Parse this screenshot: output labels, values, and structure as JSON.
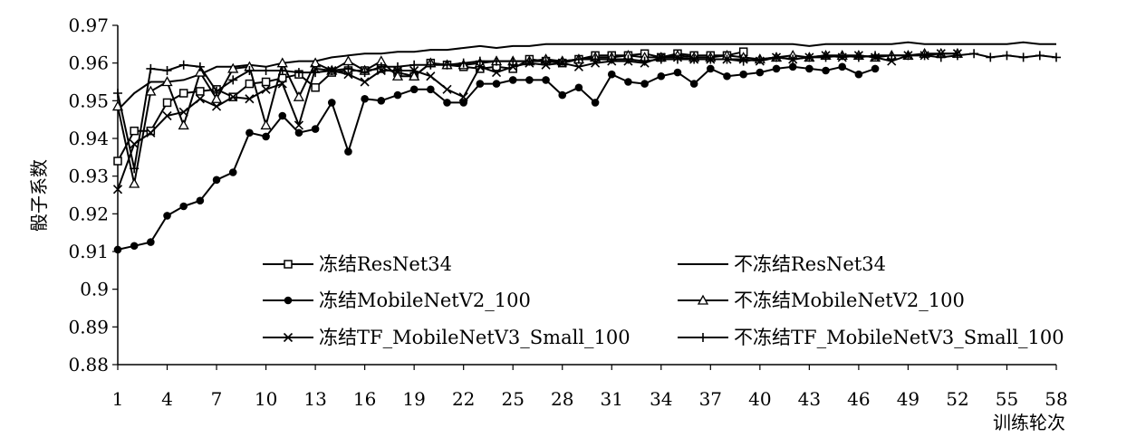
{
  "chart_data": {
    "type": "line",
    "title": "",
    "xlabel": "训练轮次",
    "ylabel": "骰子系数",
    "x_ticks": [
      1,
      4,
      7,
      10,
      13,
      16,
      19,
      22,
      25,
      28,
      31,
      34,
      37,
      40,
      43,
      46,
      49,
      52,
      55,
      58
    ],
    "xlim": [
      1,
      58
    ],
    "ylim": [
      0.88,
      0.97
    ],
    "y_ticks": [
      0.88,
      0.89,
      0.9,
      0.91,
      0.92,
      0.93,
      0.94,
      0.95,
      0.96,
      0.97
    ],
    "grid": false,
    "legend_position": "bottom, inside plot, two columns",
    "series": [
      {
        "name": "冻结ResNet34",
        "marker": "square",
        "x": [
          1,
          2,
          3,
          4,
          5,
          6,
          7,
          8,
          9,
          10,
          11,
          12,
          13,
          14,
          15,
          16,
          17,
          18,
          19,
          20,
          21,
          22,
          23,
          24,
          25,
          26,
          27,
          28,
          29,
          30,
          31,
          32,
          33,
          34,
          35,
          36,
          37,
          38,
          39
        ],
        "y": [
          0.934,
          0.942,
          0.942,
          0.9495,
          0.952,
          0.9525,
          0.953,
          0.951,
          0.9545,
          0.955,
          0.956,
          0.957,
          0.9535,
          0.9575,
          0.958,
          0.958,
          0.9585,
          0.9575,
          0.9565,
          0.96,
          0.9595,
          0.959,
          0.9585,
          0.959,
          0.9585,
          0.961,
          0.9605,
          0.96,
          0.961,
          0.962,
          0.962,
          0.962,
          0.9625,
          0.9615,
          0.9625,
          0.962,
          0.962,
          0.962,
          0.963
        ]
      },
      {
        "name": "不冻结ResNet34",
        "marker": "none",
        "x": [
          1,
          2,
          3,
          4,
          5,
          6,
          7,
          8,
          9,
          10,
          11,
          12,
          13,
          14,
          15,
          16,
          17,
          18,
          19,
          20,
          21,
          22,
          23,
          24,
          25,
          26,
          27,
          28,
          29,
          30,
          31,
          32,
          33,
          34,
          35,
          36,
          37,
          38,
          39,
          40,
          41,
          42,
          43,
          44,
          45,
          46,
          47,
          48,
          49,
          50,
          51,
          52,
          53,
          54,
          55,
          56,
          57,
          58
        ],
        "y": [
          0.9475,
          0.952,
          0.955,
          0.955,
          0.9555,
          0.957,
          0.959,
          0.959,
          0.9595,
          0.959,
          0.96,
          0.9605,
          0.9605,
          0.9615,
          0.962,
          0.9625,
          0.9625,
          0.963,
          0.963,
          0.9635,
          0.9635,
          0.964,
          0.9645,
          0.964,
          0.9645,
          0.9645,
          0.965,
          0.965,
          0.965,
          0.965,
          0.965,
          0.965,
          0.965,
          0.965,
          0.965,
          0.965,
          0.965,
          0.965,
          0.965,
          0.965,
          0.965,
          0.965,
          0.9645,
          0.965,
          0.965,
          0.965,
          0.965,
          0.965,
          0.9655,
          0.965,
          0.965,
          0.965,
          0.965,
          0.965,
          0.965,
          0.9655,
          0.965,
          0.965
        ]
      },
      {
        "name": "冻结MobileNetV2_100",
        "marker": "circle",
        "x": [
          1,
          2,
          3,
          4,
          5,
          6,
          7,
          8,
          9,
          10,
          11,
          12,
          13,
          14,
          15,
          16,
          17,
          18,
          19,
          20,
          21,
          22,
          23,
          24,
          25,
          26,
          27,
          28,
          29,
          30,
          31,
          32,
          33,
          34,
          35,
          36,
          37,
          38,
          39,
          40,
          41,
          42,
          43,
          44,
          45,
          46,
          47
        ],
        "y": [
          0.9105,
          0.9115,
          0.9125,
          0.9195,
          0.922,
          0.9235,
          0.929,
          0.931,
          0.9415,
          0.9405,
          0.946,
          0.9415,
          0.9425,
          0.9495,
          0.9365,
          0.9505,
          0.95,
          0.9515,
          0.953,
          0.953,
          0.9495,
          0.9495,
          0.9545,
          0.9545,
          0.9555,
          0.9555,
          0.9555,
          0.9515,
          0.9535,
          0.9495,
          0.957,
          0.955,
          0.9545,
          0.9565,
          0.9575,
          0.9545,
          0.9585,
          0.9565,
          0.957,
          0.9575,
          0.9585,
          0.959,
          0.9585,
          0.958,
          0.959,
          0.957,
          0.9585
        ]
      },
      {
        "name": "不冻结MobileNetV2_100",
        "marker": "triangle",
        "x": [
          1,
          2,
          3,
          4,
          5,
          6,
          7,
          8,
          9,
          10,
          11,
          12,
          13,
          14,
          15,
          16,
          17,
          18,
          19,
          20,
          21,
          22,
          23,
          24,
          25,
          26,
          27,
          28,
          29,
          30,
          31,
          32,
          33,
          34,
          35,
          36,
          37,
          38,
          39,
          40,
          41,
          42,
          43,
          44,
          45,
          46,
          47,
          48,
          49,
          50,
          51,
          52
        ],
        "y": [
          0.9485,
          0.928,
          0.9525,
          0.955,
          0.9435,
          0.9575,
          0.9505,
          0.9585,
          0.959,
          0.9435,
          0.96,
          0.951,
          0.96,
          0.958,
          0.9605,
          0.958,
          0.9605,
          0.9565,
          0.9565,
          0.96,
          0.9595,
          0.9595,
          0.96,
          0.9605,
          0.9605,
          0.9605,
          0.961,
          0.9605,
          0.961,
          0.9615,
          0.9615,
          0.962,
          0.9615,
          0.9615,
          0.962,
          0.9615,
          0.9615,
          0.962,
          0.9615,
          0.961,
          0.9615,
          0.962,
          0.9615,
          0.962,
          0.962,
          0.962,
          0.9615,
          0.962,
          0.962,
          0.9625,
          0.9625,
          0.9625
        ]
      },
      {
        "name": "冻结TF_MobileNetV3_Small_100",
        "marker": "x",
        "x": [
          1,
          2,
          3,
          4,
          5,
          6,
          7,
          8,
          9,
          10,
          11,
          12,
          13,
          14,
          15,
          16,
          17,
          18,
          19,
          20,
          21,
          22,
          23,
          24,
          25,
          26,
          27,
          28,
          29,
          30,
          31,
          32,
          33,
          34,
          35,
          36,
          37,
          38,
          39,
          40,
          41,
          42,
          43,
          44,
          45,
          46,
          47,
          48,
          49,
          50,
          51,
          52
        ],
        "y": [
          0.9265,
          0.9385,
          0.9415,
          0.946,
          0.947,
          0.9505,
          0.9485,
          0.951,
          0.9505,
          0.953,
          0.9545,
          0.9435,
          0.9585,
          0.958,
          0.957,
          0.955,
          0.958,
          0.958,
          0.958,
          0.9565,
          0.953,
          0.951,
          0.959,
          0.9575,
          0.959,
          0.96,
          0.9595,
          0.96,
          0.959,
          0.96,
          0.9605,
          0.9605,
          0.96,
          0.9615,
          0.9615,
          0.961,
          0.961,
          0.961,
          0.961,
          0.9605,
          0.9615,
          0.961,
          0.9615,
          0.962,
          0.9615,
          0.962,
          0.9615,
          0.9605,
          0.962,
          0.962,
          0.9625,
          0.9625
        ]
      },
      {
        "name": "不冻结TF_MobileNetV3_Small_100",
        "marker": "plus",
        "x": [
          1,
          2,
          3,
          4,
          5,
          6,
          7,
          8,
          9,
          10,
          11,
          12,
          13,
          14,
          15,
          16,
          17,
          18,
          19,
          20,
          21,
          22,
          23,
          24,
          25,
          26,
          27,
          28,
          29,
          30,
          31,
          32,
          33,
          34,
          35,
          36,
          37,
          38,
          39,
          40,
          41,
          42,
          43,
          44,
          45,
          46,
          47,
          48,
          49,
          50,
          51,
          52,
          53,
          54,
          55,
          56,
          57,
          58
        ],
        "y": [
          0.952,
          0.932,
          0.9585,
          0.958,
          0.9595,
          0.959,
          0.9525,
          0.9555,
          0.958,
          0.958,
          0.958,
          0.9575,
          0.9575,
          0.958,
          0.9585,
          0.9575,
          0.959,
          0.959,
          0.9595,
          0.9595,
          0.9595,
          0.96,
          0.9605,
          0.9605,
          0.9605,
          0.9605,
          0.9605,
          0.9605,
          0.961,
          0.961,
          0.961,
          0.961,
          0.9605,
          0.961,
          0.961,
          0.961,
          0.961,
          0.961,
          0.9605,
          0.961,
          0.9615,
          0.961,
          0.9615,
          0.9615,
          0.962,
          0.9615,
          0.962,
          0.962,
          0.962,
          0.962,
          0.9615,
          0.962,
          0.9625,
          0.9615,
          0.962,
          0.9615,
          0.962,
          0.9615
        ]
      }
    ]
  }
}
